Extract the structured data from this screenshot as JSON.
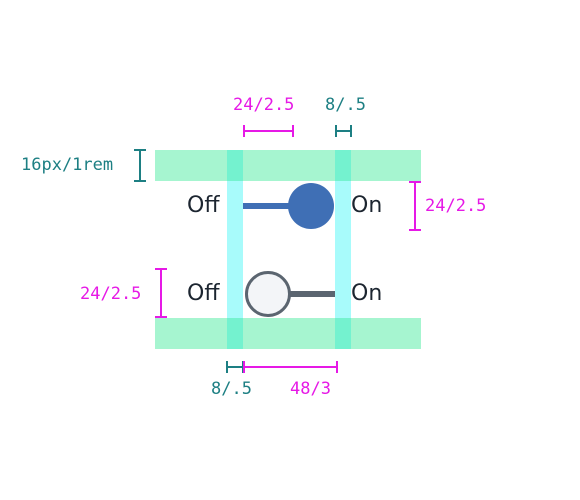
{
  "annotations": {
    "top_width": "24/2.5",
    "top_gap": "8/.5",
    "row_spacing": "16px/1rem",
    "right_height": "24/2.5",
    "left_height": "24/2.5",
    "bottom_gap": "8/.5",
    "bottom_width": "48/3"
  },
  "toggles": [
    {
      "off_label": "Off",
      "on_label": "On",
      "state": "on"
    },
    {
      "off_label": "Off",
      "on_label": "On",
      "state": "off"
    }
  ],
  "colors": {
    "magenta": "#e619e6",
    "teal": "#1d7f83",
    "green_band": "#a6f5d0",
    "cyan_band": "#a8fbfb",
    "knob_on": "#3f6fb5",
    "track": "#5b6570",
    "knob_off_fill": "#f3f5f8"
  }
}
